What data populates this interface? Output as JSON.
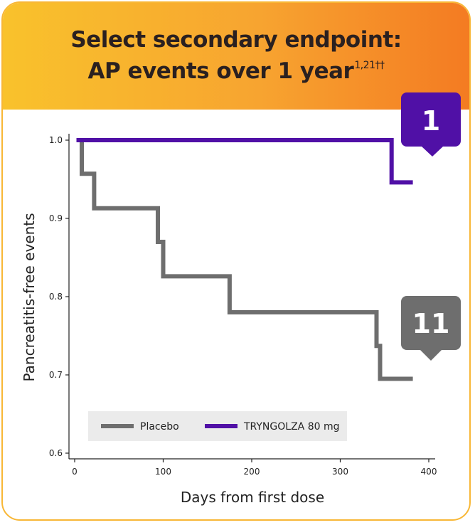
{
  "header": {
    "line1": "Select secondary endpoint:",
    "line2": "AP events over 1 year",
    "line2_superscript": "1,21††"
  },
  "colors": {
    "placebo": "#6e6e6e",
    "tryngolza": "#5010a6",
    "header_gradient_start": "#f9c22c",
    "header_gradient_end": "#f47b22",
    "card_border": "#f8b736",
    "legend_bg": "#ebebeb"
  },
  "callouts": {
    "tryngolza_events": "1",
    "placebo_events": "11"
  },
  "chart_data": {
    "type": "line",
    "step": true,
    "xlabel": "Days from first dose",
    "ylabel": "Pancreatitis-free events",
    "xlim": [
      0,
      400
    ],
    "ylim": [
      0.6,
      1.0
    ],
    "xticks": [
      0,
      100,
      200,
      300,
      400
    ],
    "yticks": [
      0.6,
      0.7,
      0.8,
      0.9,
      1.0
    ],
    "ytick_labels": [
      "0.6",
      "0.7",
      "0.8",
      "0.9",
      "1.0"
    ],
    "legend_position": "bottom-left",
    "grid": false,
    "series": [
      {
        "name": "Placebo",
        "color": "#6e6e6e",
        "points": [
          [
            2,
            1.0
          ],
          [
            8,
            1.0
          ],
          [
            8,
            0.957
          ],
          [
            22,
            0.957
          ],
          [
            22,
            0.913
          ],
          [
            94,
            0.913
          ],
          [
            94,
            0.87
          ],
          [
            100,
            0.87
          ],
          [
            100,
            0.826
          ],
          [
            175,
            0.826
          ],
          [
            175,
            0.78
          ],
          [
            341,
            0.78
          ],
          [
            341,
            0.737
          ],
          [
            345,
            0.737
          ],
          [
            345,
            0.695
          ],
          [
            382,
            0.695
          ]
        ]
      },
      {
        "name": "TRYNGOLZA 80 mg",
        "color": "#5010a6",
        "points": [
          [
            2,
            1.0
          ],
          [
            358,
            1.0
          ],
          [
            358,
            0.946
          ],
          [
            382,
            0.946
          ]
        ]
      }
    ]
  }
}
